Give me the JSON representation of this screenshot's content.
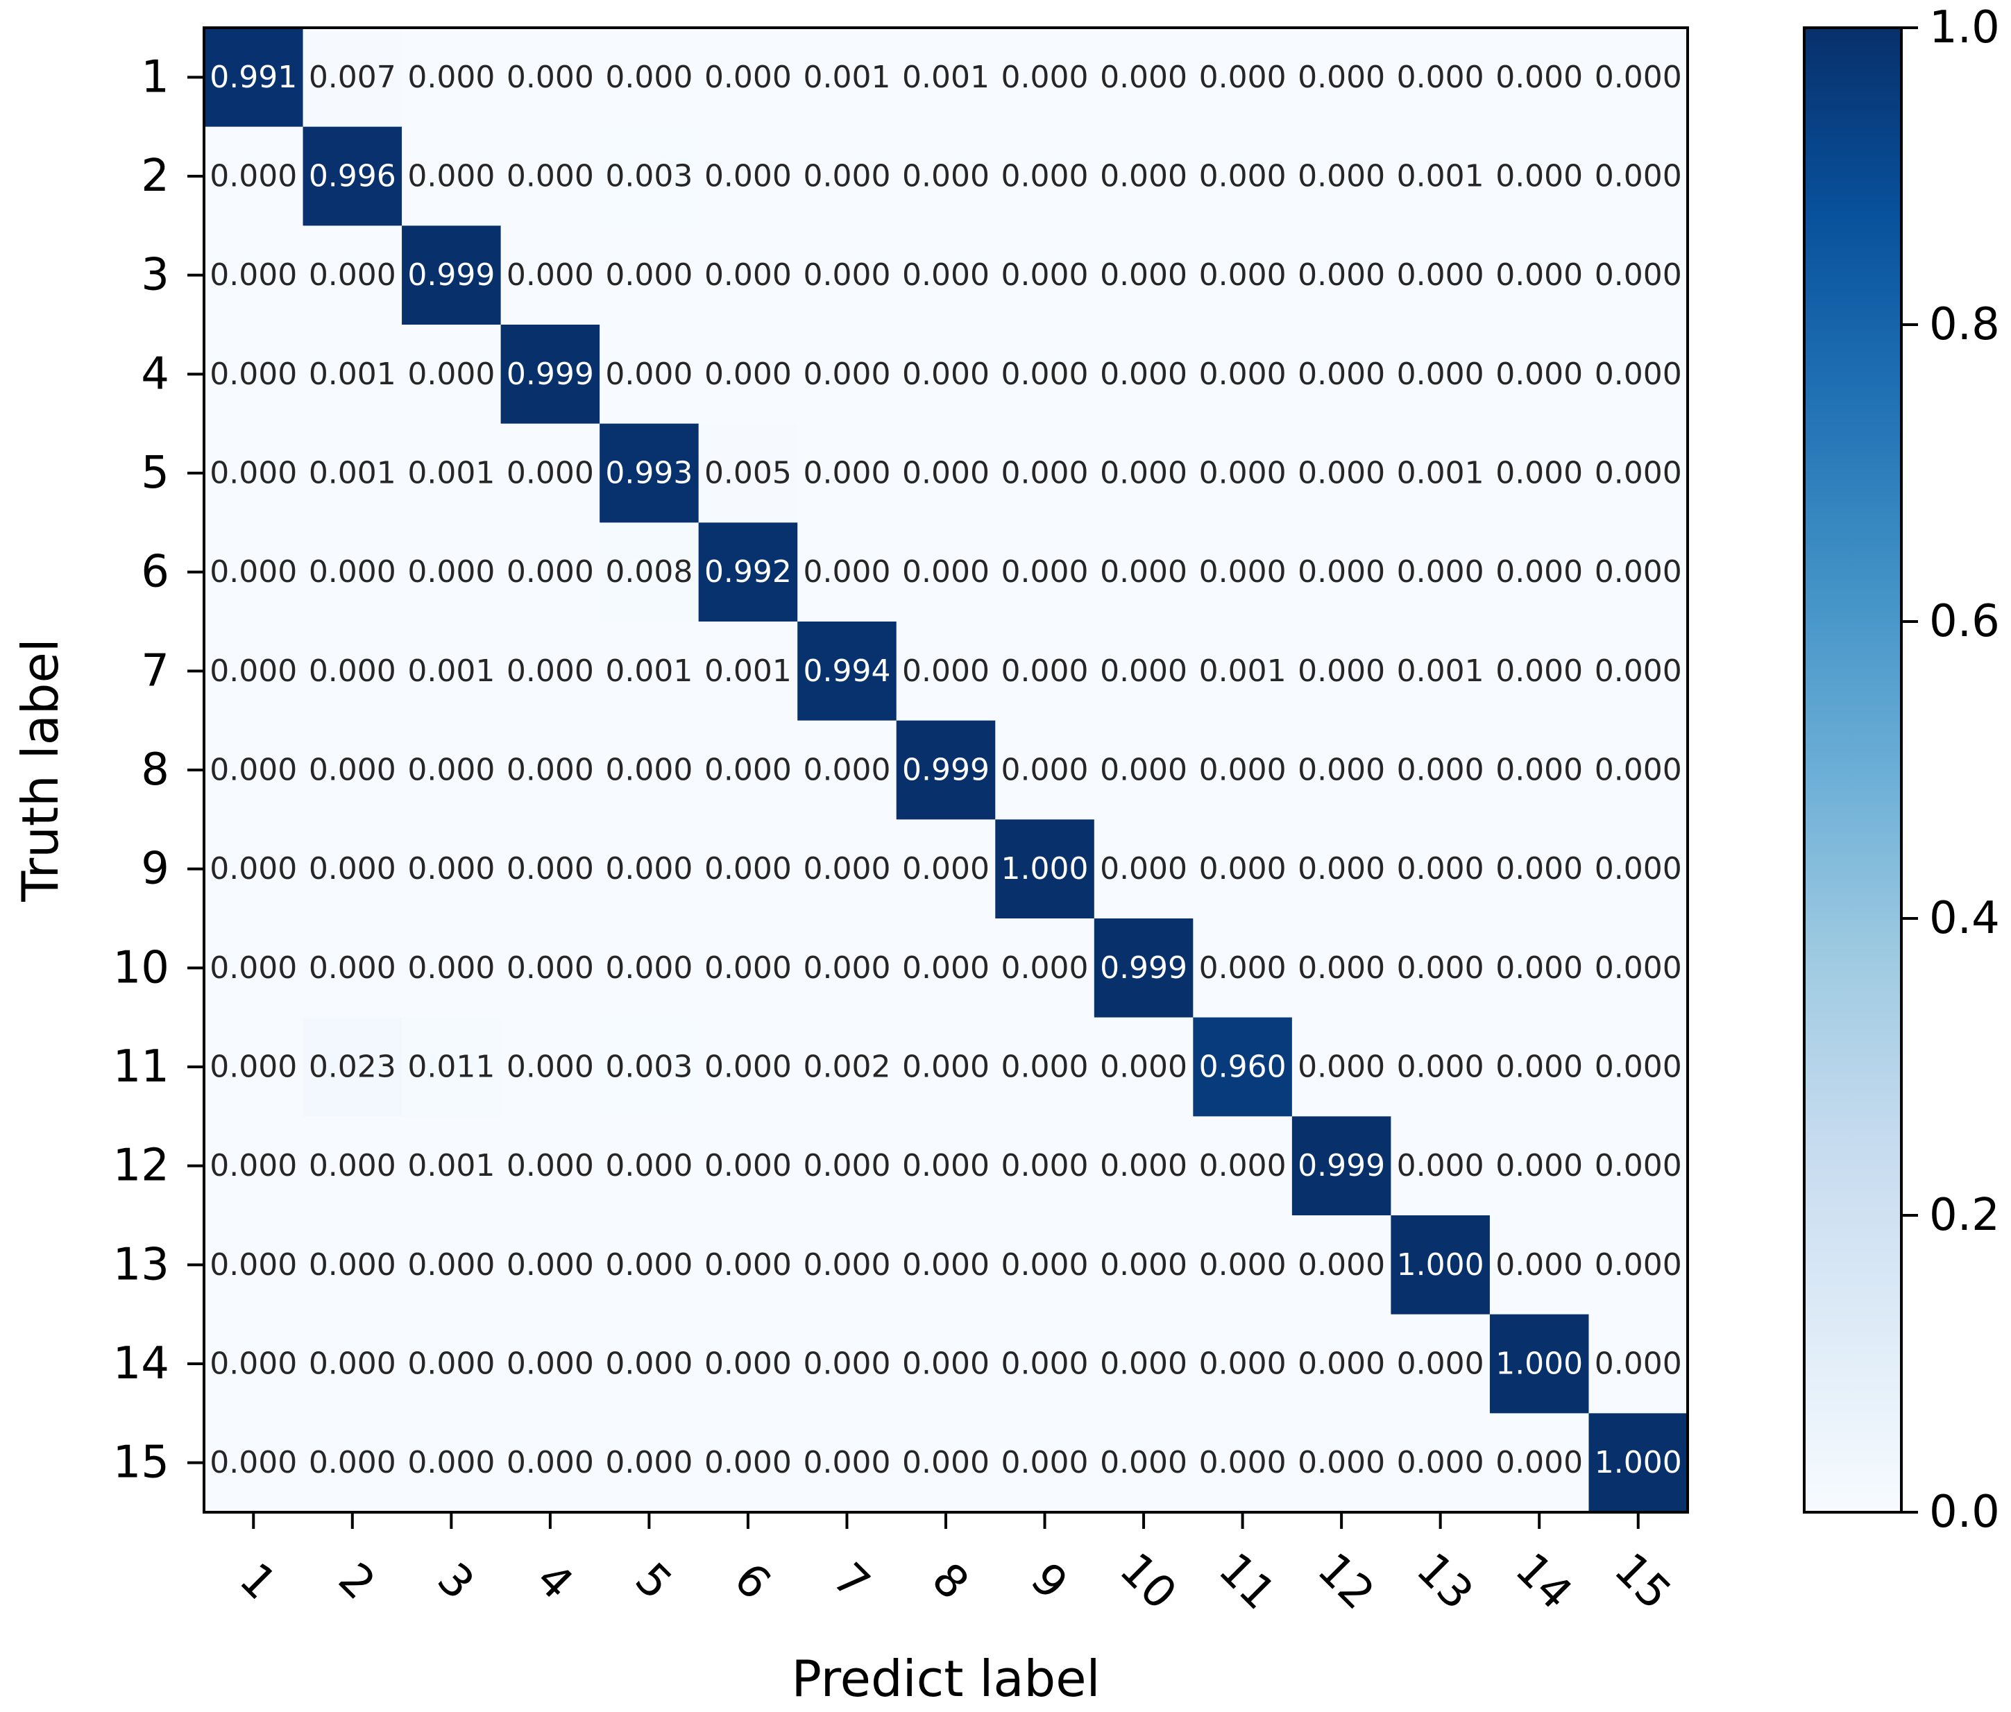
{
  "chart_data": {
    "type": "heatmap",
    "title": "",
    "xlabel": "Predict label",
    "ylabel": "Truth label",
    "x_categories": [
      "1",
      "2",
      "3",
      "4",
      "5",
      "6",
      "7",
      "8",
      "9",
      "10",
      "11",
      "12",
      "13",
      "14",
      "15"
    ],
    "y_categories": [
      "1",
      "2",
      "3",
      "4",
      "5",
      "6",
      "7",
      "8",
      "9",
      "10",
      "11",
      "12",
      "13",
      "14",
      "15"
    ],
    "values": [
      [
        0.991,
        0.007,
        0.0,
        0.0,
        0.0,
        0.0,
        0.001,
        0.001,
        0.0,
        0.0,
        0.0,
        0.0,
        0.0,
        0.0,
        0.0
      ],
      [
        0.0,
        0.996,
        0.0,
        0.0,
        0.003,
        0.0,
        0.0,
        0.0,
        0.0,
        0.0,
        0.0,
        0.0,
        0.001,
        0.0,
        0.0
      ],
      [
        0.0,
        0.0,
        0.999,
        0.0,
        0.0,
        0.0,
        0.0,
        0.0,
        0.0,
        0.0,
        0.0,
        0.0,
        0.0,
        0.0,
        0.0
      ],
      [
        0.0,
        0.001,
        0.0,
        0.999,
        0.0,
        0.0,
        0.0,
        0.0,
        0.0,
        0.0,
        0.0,
        0.0,
        0.0,
        0.0,
        0.0
      ],
      [
        0.0,
        0.001,
        0.001,
        0.0,
        0.993,
        0.005,
        0.0,
        0.0,
        0.0,
        0.0,
        0.0,
        0.0,
        0.001,
        0.0,
        0.0
      ],
      [
        0.0,
        0.0,
        0.0,
        0.0,
        0.008,
        0.992,
        0.0,
        0.0,
        0.0,
        0.0,
        0.0,
        0.0,
        0.0,
        0.0,
        0.0
      ],
      [
        0.0,
        0.0,
        0.001,
        0.0,
        0.001,
        0.001,
        0.994,
        0.0,
        0.0,
        0.0,
        0.001,
        0.0,
        0.001,
        0.0,
        0.0
      ],
      [
        0.0,
        0.0,
        0.0,
        0.0,
        0.0,
        0.0,
        0.0,
        0.999,
        0.0,
        0.0,
        0.0,
        0.0,
        0.0,
        0.0,
        0.0
      ],
      [
        0.0,
        0.0,
        0.0,
        0.0,
        0.0,
        0.0,
        0.0,
        0.0,
        1.0,
        0.0,
        0.0,
        0.0,
        0.0,
        0.0,
        0.0
      ],
      [
        0.0,
        0.0,
        0.0,
        0.0,
        0.0,
        0.0,
        0.0,
        0.0,
        0.0,
        0.999,
        0.0,
        0.0,
        0.0,
        0.0,
        0.0
      ],
      [
        0.0,
        0.023,
        0.011,
        0.0,
        0.003,
        0.0,
        0.002,
        0.0,
        0.0,
        0.0,
        0.96,
        0.0,
        0.0,
        0.0,
        0.0
      ],
      [
        0.0,
        0.0,
        0.001,
        0.0,
        0.0,
        0.0,
        0.0,
        0.0,
        0.0,
        0.0,
        0.0,
        0.999,
        0.0,
        0.0,
        0.0
      ],
      [
        0.0,
        0.0,
        0.0,
        0.0,
        0.0,
        0.0,
        0.0,
        0.0,
        0.0,
        0.0,
        0.0,
        0.0,
        1.0,
        0.0,
        0.0
      ],
      [
        0.0,
        0.0,
        0.0,
        0.0,
        0.0,
        0.0,
        0.0,
        0.0,
        0.0,
        0.0,
        0.0,
        0.0,
        0.0,
        1.0,
        0.0
      ],
      [
        0.0,
        0.0,
        0.0,
        0.0,
        0.0,
        0.0,
        0.0,
        0.0,
        0.0,
        0.0,
        0.0,
        0.0,
        0.0,
        0.0,
        1.0
      ]
    ],
    "value_format": "0.000",
    "colormap": "Blues",
    "colormap_stops": [
      "#f7fbff",
      "#deebf7",
      "#c6dbef",
      "#9ecae1",
      "#6baed6",
      "#4292c6",
      "#2171b5",
      "#08519c",
      "#08306b"
    ],
    "vmin": 0.0,
    "vmax": 1.0,
    "colorbar": {
      "ticks": [
        0.0,
        0.2,
        0.4,
        0.6,
        0.8,
        1.0
      ],
      "tick_labels": [
        "0.0",
        "0.2",
        "0.4",
        "0.6",
        "0.8",
        "1.0"
      ]
    },
    "grid": false,
    "legend": "none"
  }
}
